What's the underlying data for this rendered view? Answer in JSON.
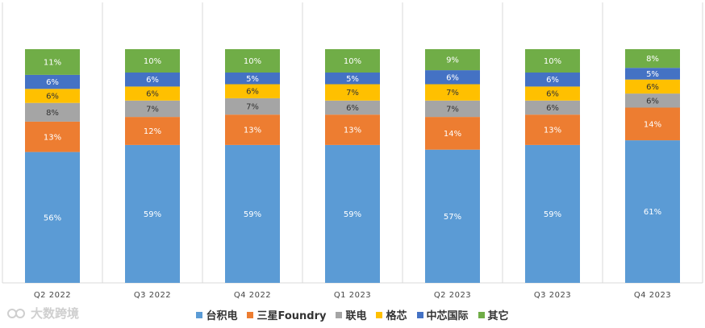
{
  "chart_data": {
    "type": "bar",
    "stacked": true,
    "categories": [
      "Q2 2022",
      "Q3 2022",
      "Q4 2022",
      "Q1 2023",
      "Q2 2023",
      "Q3 2023",
      "Q4 2023"
    ],
    "series": [
      {
        "name": "台积电",
        "color": "#5B9BD5",
        "values": [
          56,
          59,
          59,
          59,
          57,
          59,
          61
        ],
        "labels": [
          "56%",
          "59%",
          "59%",
          "59%",
          "57%",
          "59%",
          "61%"
        ]
      },
      {
        "name": "三星Foundry",
        "color": "#ED7D31",
        "values": [
          13,
          12,
          13,
          13,
          14,
          13,
          14
        ],
        "labels": [
          "13%",
          "12%",
          "13%",
          "13%",
          "14%",
          "13%",
          "14%"
        ]
      },
      {
        "name": "联电",
        "color": "#A5A5A5",
        "values": [
          8,
          7,
          7,
          6,
          7,
          6,
          6
        ],
        "labels": [
          "8%",
          "7%",
          "7%",
          "6%",
          "7%",
          "6%",
          "6%"
        ]
      },
      {
        "name": "格芯",
        "color": "#FFC000",
        "values": [
          6,
          6,
          6,
          7,
          7,
          6,
          6
        ],
        "labels": [
          "6%",
          "6%",
          "6%",
          "7%",
          "7%",
          "6%",
          "6%"
        ]
      },
      {
        "name": "中芯国际",
        "color": "#4472C4",
        "values": [
          6,
          6,
          5,
          5,
          6,
          6,
          5
        ],
        "labels": [
          "6%",
          "6%",
          "5%",
          "5%",
          "6%",
          "6%",
          "5%"
        ]
      },
      {
        "name": "其它",
        "color": "#70AD47",
        "values": [
          11,
          10,
          10,
          10,
          9,
          10,
          8
        ],
        "labels": [
          "11%",
          "10%",
          "10%",
          "10%",
          "9%",
          "10%",
          "8%"
        ]
      }
    ],
    "ylim": [
      0,
      100
    ],
    "grid": "vertical-separators",
    "legend": "bottom"
  },
  "watermark": {
    "text": "大数跨境"
  }
}
